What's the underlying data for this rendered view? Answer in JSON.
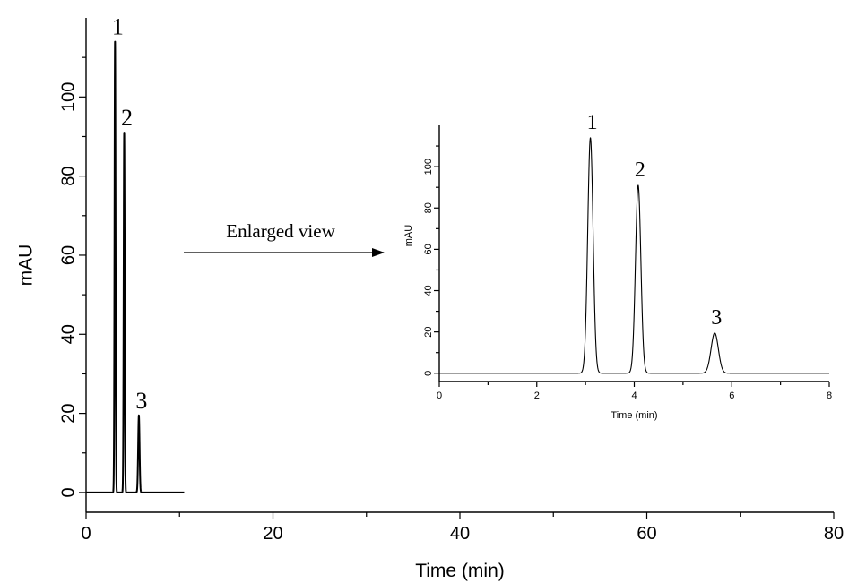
{
  "chart_data": [
    {
      "type": "line",
      "title": "",
      "xlabel": "Time (min)",
      "ylabel": "mAU",
      "xlim": [
        0,
        80
      ],
      "ylim": [
        -5,
        120
      ],
      "x_ticks": [
        0,
        20,
        40,
        60,
        80
      ],
      "y_ticks": [
        0,
        20,
        40,
        60,
        80,
        100
      ],
      "trace_range": [
        0,
        10.5
      ],
      "peaks": [
        {
          "label": "1",
          "time": 3.1,
          "height": 114,
          "sigma": 0.055
        },
        {
          "label": "2",
          "time": 4.08,
          "height": 91,
          "sigma": 0.055
        },
        {
          "label": "3",
          "time": 5.65,
          "height": 19.5,
          "sigma": 0.075
        }
      ]
    },
    {
      "type": "line",
      "title": "",
      "xlabel": "Time (min)",
      "ylabel": "mAU",
      "xlim": [
        0,
        8
      ],
      "ylim": [
        -4,
        120
      ],
      "x_ticks": [
        0,
        2,
        4,
        6,
        8
      ],
      "y_ticks": [
        0,
        20,
        40,
        60,
        80,
        100
      ],
      "trace_range": [
        0,
        8
      ],
      "peaks": [
        {
          "label": "1",
          "time": 3.1,
          "height": 114,
          "sigma": 0.055
        },
        {
          "label": "2",
          "time": 4.08,
          "height": 91,
          "sigma": 0.055
        },
        {
          "label": "3",
          "time": 5.65,
          "height": 19.5,
          "sigma": 0.075
        }
      ]
    }
  ],
  "annotation": {
    "text": "Enlarged view"
  }
}
